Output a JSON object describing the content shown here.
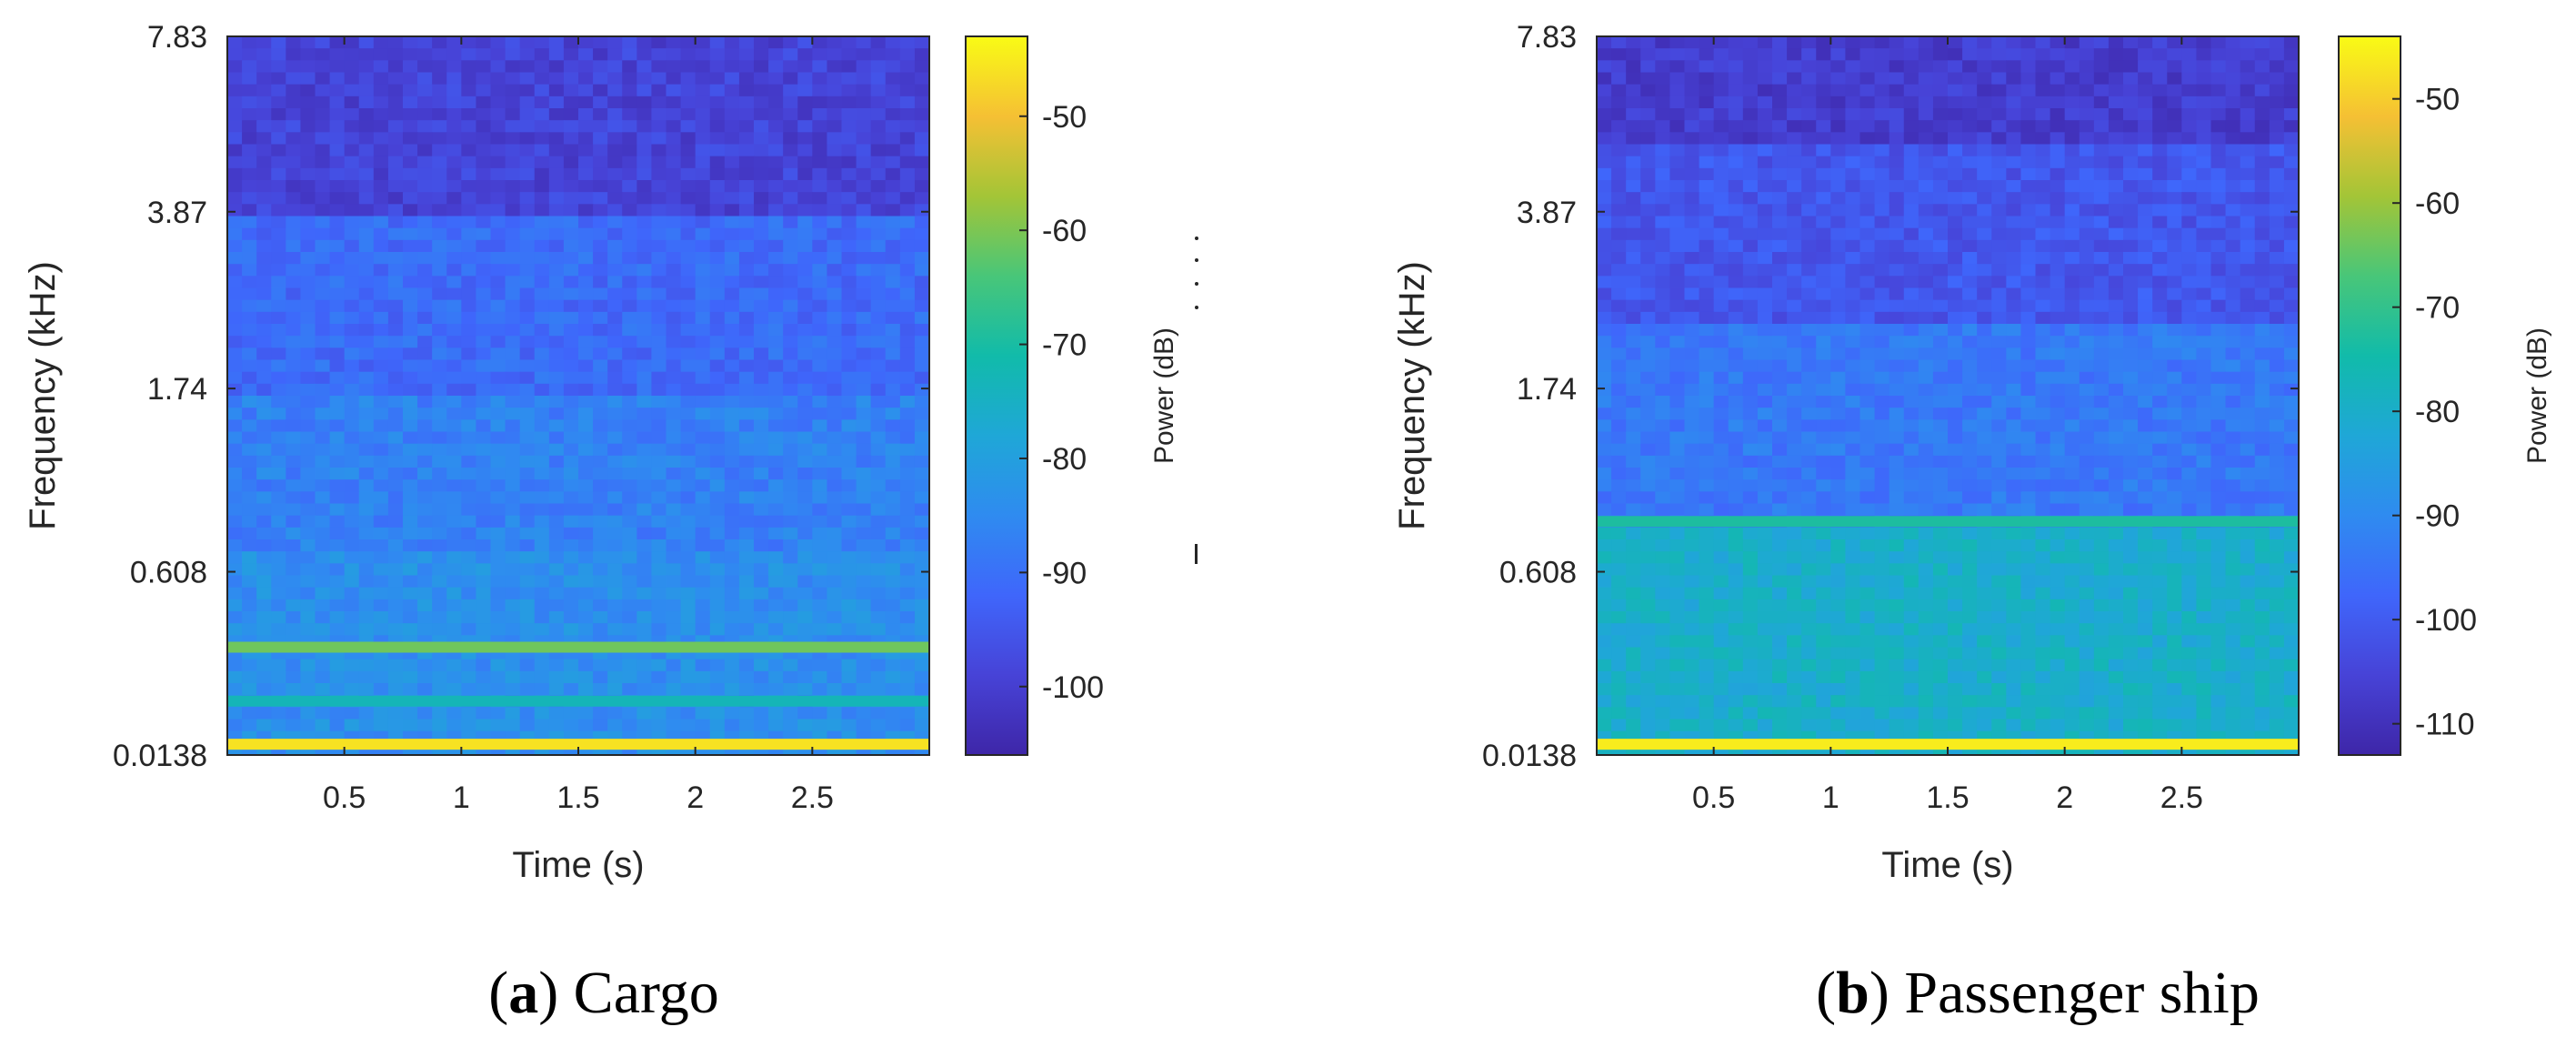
{
  "figure": {
    "caption_a": {
      "letter": "a",
      "text": "Cargo"
    },
    "caption_b": {
      "letter": "b",
      "text": "Passenger ship"
    }
  },
  "colors": {
    "parula": [
      "#3E26A8",
      "#4743D7",
      "#3F66FB",
      "#2F8BF0",
      "#1FA7D7",
      "#11BBAA",
      "#48C679",
      "#A3C537",
      "#F5C034",
      "#F9FB15"
    ]
  },
  "chart_data": [
    {
      "type": "heatmap",
      "panel": "a",
      "title": "Cargo",
      "xlabel": "Time (s)",
      "ylabel": "Frequency (kHz)",
      "x_ticks": [
        0.5,
        1,
        1.5,
        2,
        2.5
      ],
      "x_tick_labels": [
        "0.5",
        "1",
        "1.5",
        "2",
        "2.5"
      ],
      "xlim": [
        0,
        3
      ],
      "y_tick_labels": [
        "7.83",
        "3.87",
        "1.74",
        "0.608",
        "0.0138"
      ],
      "colorbar": {
        "label": "Power (dB)",
        "range": [
          -106,
          -43
        ],
        "ticks": [
          -50,
          -60,
          -70,
          -80,
          -90,
          -100
        ],
        "tick_labels": [
          "-50",
          "-60",
          "-70",
          "-80",
          "-90",
          "-100"
        ]
      },
      "bands": [
        {
          "from": 1.0,
          "to": 0.75,
          "power": -99
        },
        {
          "from": 0.75,
          "to": 0.5,
          "power": -91
        },
        {
          "from": 0.5,
          "to": 0.3,
          "power": -87
        },
        {
          "from": 0.3,
          "to": 0.0,
          "power": -84
        }
      ],
      "lines": [
        {
          "pos": 0.15,
          "power": -61
        },
        {
          "pos": 0.075,
          "power": -73
        },
        {
          "pos": 0.015,
          "power": -46
        }
      ]
    },
    {
      "type": "heatmap",
      "panel": "b",
      "title": "Passenger ship",
      "xlabel": "Time (s)",
      "ylabel": "Frequency (kHz)",
      "x_ticks": [
        0.5,
        1,
        1.5,
        2,
        2.5
      ],
      "x_tick_labels": [
        "0.5",
        "1",
        "1.5",
        "2",
        "2.5"
      ],
      "xlim": [
        0,
        3
      ],
      "y_tick_labels": [
        "7.83",
        "3.87",
        "1.74",
        "0.608",
        "0.0138"
      ],
      "colorbar": {
        "label": "Power (dB)",
        "range": [
          -113,
          -44
        ],
        "ticks": [
          -50,
          -60,
          -70,
          -80,
          -90,
          -100,
          -110
        ],
        "tick_labels": [
          "-50",
          "-60",
          "-70",
          "-80",
          "-90",
          "-100",
          "-110"
        ]
      },
      "bands": [
        {
          "from": 1.0,
          "to": 0.85,
          "power": -107
        },
        {
          "from": 0.85,
          "to": 0.6,
          "power": -101
        },
        {
          "from": 0.6,
          "to": 0.32,
          "power": -94
        },
        {
          "from": 0.32,
          "to": 0.0,
          "power": -80
        }
      ],
      "lines": [
        {
          "pos": 0.325,
          "power": -73
        },
        {
          "pos": 0.015,
          "power": -46
        }
      ]
    }
  ]
}
